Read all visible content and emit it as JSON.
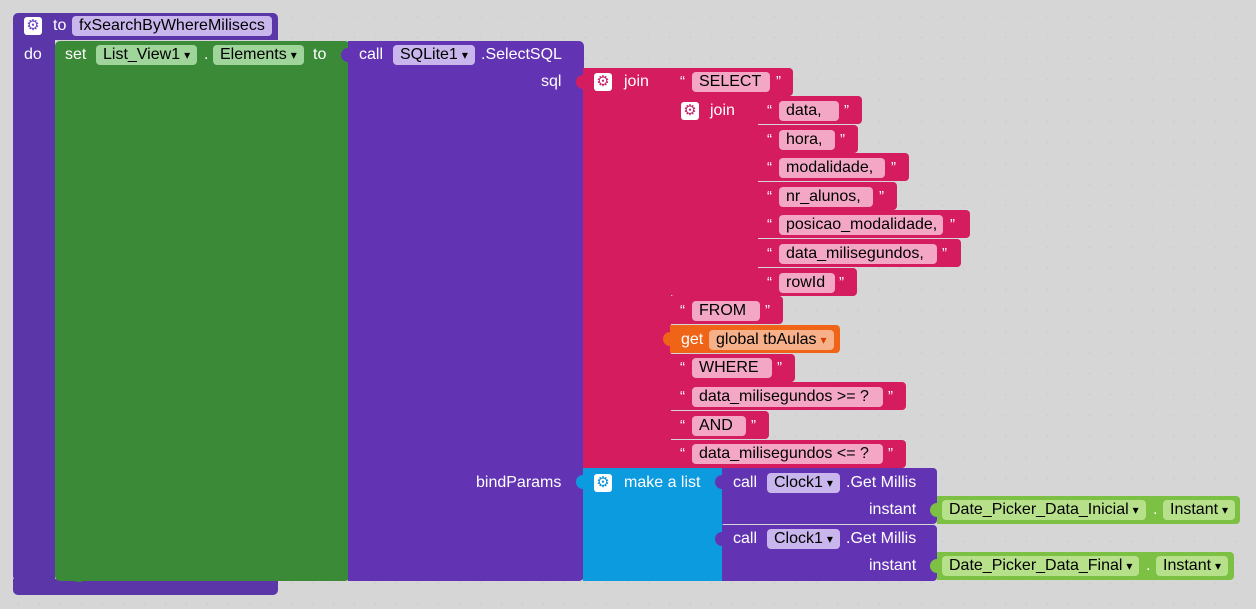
{
  "procedure": {
    "to_label": "to",
    "name": "fxSearchByWhereMilisecs",
    "do_label": "do"
  },
  "set_block": {
    "set_label": "set",
    "component": "List_View1",
    "dot": ".",
    "property": "Elements",
    "to_label": "to"
  },
  "select_sql": {
    "call_label": "call",
    "component": "SQLite1",
    "method": ".SelectSQL",
    "sql_label": "sql",
    "bindparams_label": "bindParams"
  },
  "outer_join": {
    "label": "join",
    "select_text": "SELECT",
    "from_text": "FROM",
    "where_text": "WHERE",
    "cond1_text": "data_milisegundos >= ?",
    "and_text": "AND",
    "cond2_text": "data_milisegundos <= ?"
  },
  "inner_join": {
    "label": "join",
    "items": [
      "data,",
      "hora,",
      "modalidade,",
      "nr_alunos,",
      "posicao_modalidade,",
      "data_milisegundos,",
      "rowId"
    ]
  },
  "get_global": {
    "get_label": "get",
    "variable": "global tbAulas"
  },
  "make_list": {
    "label": "make a list"
  },
  "millis_1": {
    "call_label": "call",
    "component": "Clock1",
    "method": ".Get Millis",
    "instant_label": "instant",
    "picker": "Date_Picker_Data_Inicial",
    "dot": ".",
    "property": "Instant"
  },
  "millis_2": {
    "call_label": "call",
    "component": "Clock1",
    "method": ".Get Millis",
    "instant_label": "instant",
    "picker": "Date_Picker_Data_Final",
    "dot": ".",
    "property": "Instant"
  },
  "quote_open": "“",
  "quote_close": "”",
  "dropdown_arrow": "▾",
  "colors": {
    "procedure": "#5b36a8",
    "set": "#3a8a37",
    "sqlite": "#6234b3",
    "text": "#d41c5e",
    "get": "#f06418",
    "list": "#0d9be0",
    "component": "#7cc143"
  },
  "icons": {
    "mutator": "gear-icon"
  }
}
